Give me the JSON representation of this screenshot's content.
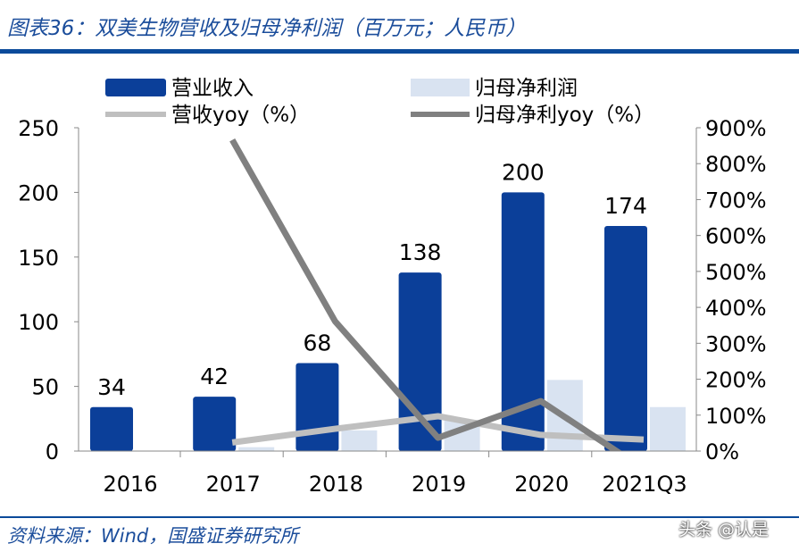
{
  "title": "图表36：双美生物营收及归母净利润（百万元；人民币）",
  "source": "资料来源：Wind，国盛证券研究所",
  "watermark": "头条 @认是",
  "chart_data": {
    "type": "bar+line",
    "categories": [
      "2016",
      "2017",
      "2018",
      "2019",
      "2020",
      "2021Q3"
    ],
    "left_axis": {
      "ylim": [
        0,
        250
      ],
      "ticks": [
        0,
        50,
        100,
        150,
        200,
        250
      ]
    },
    "right_axis": {
      "ylim": [
        0,
        900
      ],
      "ticks": [
        "0%",
        "100%",
        "200%",
        "300%",
        "400%",
        "500%",
        "600%",
        "700%",
        "800%",
        "900%"
      ]
    },
    "grid": false,
    "legend": "top",
    "series": [
      {
        "name": "营业收入",
        "type": "bar",
        "axis": "left",
        "color": "#0b3f99",
        "values": [
          34,
          42,
          68,
          138,
          200,
          174
        ],
        "labels": [
          "34",
          "42",
          "68",
          "138",
          "200",
          "174"
        ]
      },
      {
        "name": "归母净利润",
        "type": "bar",
        "axis": "left",
        "color": "#d9e3f1",
        "values": [
          null,
          3,
          16,
          24,
          55,
          34
        ]
      },
      {
        "name": "营收yoy（%）",
        "type": "line",
        "axis": "right",
        "color": "#bfbfbf",
        "values": [
          null,
          24,
          62,
          97,
          45,
          32
        ]
      },
      {
        "name": "归母净利yoy（%）",
        "type": "line",
        "axis": "right",
        "color": "#808080",
        "values": [
          null,
          866,
          361,
          37,
          139,
          -50
        ]
      }
    ]
  }
}
